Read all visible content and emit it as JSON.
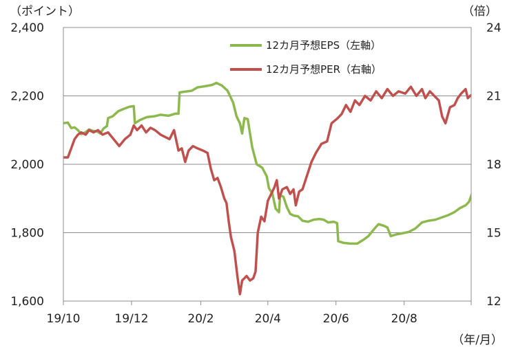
{
  "chart_data": {
    "type": "line",
    "units": {
      "left": "（ポイント）",
      "right": "（倍）",
      "x": "（年/月）"
    },
    "x_ticks": [
      "19/10",
      "19/12",
      "20/2",
      "20/4",
      "20/6",
      "20/8"
    ],
    "y_left": {
      "lim": [
        1600,
        2400
      ],
      "ticks": [
        "1,600",
        "1,800",
        "2,000",
        "2,200",
        "2,400"
      ],
      "tick_values": [
        1600,
        1800,
        2000,
        2200,
        2400
      ]
    },
    "y_right": {
      "lim": [
        12,
        24
      ],
      "ticks": [
        "12",
        "15",
        "18",
        "21",
        "24"
      ],
      "tick_values": [
        12,
        15,
        18,
        21,
        24
      ]
    },
    "x_range": [
      "2019-10-01",
      "2020-09-30"
    ],
    "grid": "horizontal",
    "legend_position": "top-center",
    "series": [
      {
        "name": "12カ月予想EPS（左軸）",
        "axis": "left",
        "color": "#8db84e",
        "points": [
          [
            "2019-10-01",
            2120
          ],
          [
            "2019-10-05",
            2122
          ],
          [
            "2019-10-08",
            2106
          ],
          [
            "2019-10-11",
            2108
          ],
          [
            "2019-10-14",
            2100
          ],
          [
            "2019-10-17",
            2088
          ],
          [
            "2019-10-21",
            2094
          ],
          [
            "2019-10-24",
            2102
          ],
          [
            "2019-10-27",
            2098
          ],
          [
            "2019-10-31",
            2096
          ],
          [
            "2019-11-03",
            2090
          ],
          [
            "2019-11-06",
            2105
          ],
          [
            "2019-11-09",
            2112
          ],
          [
            "2019-11-10",
            2135
          ],
          [
            "2019-11-14",
            2140
          ],
          [
            "2019-11-19",
            2155
          ],
          [
            "2019-11-24",
            2162
          ],
          [
            "2019-11-29",
            2168
          ],
          [
            "2019-12-03",
            2170
          ],
          [
            "2019-12-04",
            2120
          ],
          [
            "2019-12-09",
            2130
          ],
          [
            "2019-12-15",
            2138
          ],
          [
            "2019-12-21",
            2140
          ],
          [
            "2019-12-27",
            2145
          ],
          [
            "2020-01-03",
            2142
          ],
          [
            "2020-01-09",
            2148
          ],
          [
            "2020-01-12",
            2148
          ],
          [
            "2020-01-13",
            2210
          ],
          [
            "2020-01-17",
            2212
          ],
          [
            "2020-01-24",
            2215
          ],
          [
            "2020-01-29",
            2225
          ],
          [
            "2020-02-04",
            2228
          ],
          [
            "2020-02-11",
            2232
          ],
          [
            "2020-02-15",
            2238
          ],
          [
            "2020-02-20",
            2230
          ],
          [
            "2020-02-25",
            2215
          ],
          [
            "2020-03-01",
            2180
          ],
          [
            "2020-03-04",
            2140
          ],
          [
            "2020-03-07",
            2120
          ],
          [
            "2020-03-09",
            2090
          ],
          [
            "2020-03-11",
            2135
          ],
          [
            "2020-03-14",
            2132
          ],
          [
            "2020-03-18",
            2050
          ],
          [
            "2020-03-22",
            2000
          ],
          [
            "2020-03-27",
            1990
          ],
          [
            "2020-03-31",
            1965
          ],
          [
            "2020-04-02",
            1930
          ],
          [
            "2020-04-05",
            1915
          ],
          [
            "2020-04-08",
            1870
          ],
          [
            "2020-04-11",
            1860
          ],
          [
            "2020-04-12",
            1910
          ],
          [
            "2020-04-15",
            1905
          ],
          [
            "2020-04-18",
            1875
          ],
          [
            "2020-04-21",
            1855
          ],
          [
            "2020-04-24",
            1850
          ],
          [
            "2020-04-28",
            1848
          ],
          [
            "2020-05-02",
            1835
          ],
          [
            "2020-05-07",
            1832
          ],
          [
            "2020-05-12",
            1838
          ],
          [
            "2020-05-17",
            1840
          ],
          [
            "2020-05-21",
            1838
          ],
          [
            "2020-05-25",
            1830
          ],
          [
            "2020-05-30",
            1832
          ],
          [
            "2020-06-02",
            1828
          ],
          [
            "2020-06-03",
            1775
          ],
          [
            "2020-06-08",
            1770
          ],
          [
            "2020-06-14",
            1768
          ],
          [
            "2020-06-20",
            1768
          ],
          [
            "2020-06-26",
            1780
          ],
          [
            "2020-06-30",
            1790
          ],
          [
            "2020-07-05",
            1810
          ],
          [
            "2020-07-09",
            1825
          ],
          [
            "2020-07-14",
            1820
          ],
          [
            "2020-07-17",
            1815
          ],
          [
            "2020-07-20",
            1790
          ],
          [
            "2020-07-25",
            1795
          ],
          [
            "2020-07-30",
            1798
          ],
          [
            "2020-08-05",
            1802
          ],
          [
            "2020-08-11",
            1812
          ],
          [
            "2020-08-17",
            1830
          ],
          [
            "2020-08-23",
            1835
          ],
          [
            "2020-08-29",
            1838
          ],
          [
            "2020-09-04",
            1845
          ],
          [
            "2020-09-10",
            1852
          ],
          [
            "2020-09-15",
            1860
          ],
          [
            "2020-09-20",
            1872
          ],
          [
            "2020-09-25",
            1880
          ],
          [
            "2020-09-28",
            1890
          ],
          [
            "2020-09-30",
            1908
          ],
          [
            "2020-10-02",
            1925
          ]
        ]
      },
      {
        "name": "12カ月予想PER（右軸）",
        "axis": "right",
        "color": "#c0504d",
        "points": [
          [
            "2019-10-01",
            18.3
          ],
          [
            "2019-10-05",
            18.3
          ],
          [
            "2019-10-08",
            18.7
          ],
          [
            "2019-10-11",
            19.1
          ],
          [
            "2019-10-14",
            19.3
          ],
          [
            "2019-10-17",
            19.4
          ],
          [
            "2019-10-21",
            19.3
          ],
          [
            "2019-10-24",
            19.5
          ],
          [
            "2019-10-28",
            19.4
          ],
          [
            "2019-11-01",
            19.5
          ],
          [
            "2019-11-05",
            19.3
          ],
          [
            "2019-11-10",
            19.4
          ],
          [
            "2019-11-15",
            19.1
          ],
          [
            "2019-11-20",
            18.8
          ],
          [
            "2019-11-25",
            19.1
          ],
          [
            "2019-11-30",
            19.3
          ],
          [
            "2019-12-03",
            19.7
          ],
          [
            "2019-12-06",
            19.5
          ],
          [
            "2019-12-10",
            19.7
          ],
          [
            "2019-12-14",
            19.4
          ],
          [
            "2019-12-18",
            19.6
          ],
          [
            "2019-12-22",
            19.5
          ],
          [
            "2019-12-27",
            19.3
          ],
          [
            "2019-12-31",
            19.2
          ],
          [
            "2020-01-04",
            19.1
          ],
          [
            "2020-01-08",
            19.5
          ],
          [
            "2020-01-12",
            18.6
          ],
          [
            "2020-01-15",
            18.7
          ],
          [
            "2020-01-18",
            18.1
          ],
          [
            "2020-01-21",
            18.6
          ],
          [
            "2020-01-25",
            18.8
          ],
          [
            "2020-01-29",
            18.7
          ],
          [
            "2020-02-03",
            18.6
          ],
          [
            "2020-02-07",
            18.5
          ],
          [
            "2020-02-10",
            17.8
          ],
          [
            "2020-02-13",
            17.3
          ],
          [
            "2020-02-16",
            17.4
          ],
          [
            "2020-02-19",
            17.0
          ],
          [
            "2020-02-22",
            16.5
          ],
          [
            "2020-02-24",
            16.3
          ],
          [
            "2020-02-26",
            15.5
          ],
          [
            "2020-02-28",
            14.8
          ],
          [
            "2020-03-02",
            14.2
          ],
          [
            "2020-03-05",
            13.0
          ],
          [
            "2020-03-07",
            12.3
          ],
          [
            "2020-03-09",
            12.9
          ],
          [
            "2020-03-11",
            13.0
          ],
          [
            "2020-03-13",
            13.1
          ],
          [
            "2020-03-16",
            12.9
          ],
          [
            "2020-03-19",
            13.0
          ],
          [
            "2020-03-21",
            13.3
          ],
          [
            "2020-03-23",
            15.0
          ],
          [
            "2020-03-26",
            15.7
          ],
          [
            "2020-03-29",
            15.5
          ],
          [
            "2020-04-01",
            16.4
          ],
          [
            "2020-04-04",
            16.7
          ],
          [
            "2020-04-07",
            17.0
          ],
          [
            "2020-04-09",
            17.3
          ],
          [
            "2020-04-11",
            16.5
          ],
          [
            "2020-04-14",
            16.9
          ],
          [
            "2020-04-18",
            17.0
          ],
          [
            "2020-04-21",
            16.7
          ],
          [
            "2020-04-24",
            16.9
          ],
          [
            "2020-04-26",
            16.2
          ],
          [
            "2020-04-29",
            16.8
          ],
          [
            "2020-05-02",
            16.9
          ],
          [
            "2020-05-06",
            17.5
          ],
          [
            "2020-05-10",
            18.1
          ],
          [
            "2020-05-14",
            18.5
          ],
          [
            "2020-05-19",
            18.9
          ],
          [
            "2020-05-24",
            19.0
          ],
          [
            "2020-05-28",
            19.8
          ],
          [
            "2020-06-02",
            20.0
          ],
          [
            "2020-06-06",
            20.2
          ],
          [
            "2020-06-10",
            20.6
          ],
          [
            "2020-06-14",
            20.3
          ],
          [
            "2020-06-18",
            20.8
          ],
          [
            "2020-06-22",
            20.6
          ],
          [
            "2020-06-27",
            21.0
          ],
          [
            "2020-07-02",
            20.8
          ],
          [
            "2020-07-07",
            21.2
          ],
          [
            "2020-07-12",
            20.9
          ],
          [
            "2020-07-17",
            21.3
          ],
          [
            "2020-07-22",
            21.0
          ],
          [
            "2020-07-27",
            21.2
          ],
          [
            "2020-08-02",
            21.1
          ],
          [
            "2020-08-07",
            21.4
          ],
          [
            "2020-08-12",
            21.0
          ],
          [
            "2020-08-17",
            21.3
          ],
          [
            "2020-08-20",
            20.9
          ],
          [
            "2020-08-24",
            21.2
          ],
          [
            "2020-08-28",
            21.0
          ],
          [
            "2020-09-01",
            20.8
          ],
          [
            "2020-09-04",
            20.1
          ],
          [
            "2020-09-07",
            19.8
          ],
          [
            "2020-09-11",
            20.5
          ],
          [
            "2020-09-15",
            20.6
          ],
          [
            "2020-09-18",
            20.9
          ],
          [
            "2020-09-21",
            21.1
          ],
          [
            "2020-09-25",
            21.3
          ],
          [
            "2020-09-27",
            20.9
          ],
          [
            "2020-09-29",
            21.0
          ],
          [
            "2020-10-02",
            21.1
          ]
        ]
      }
    ]
  }
}
